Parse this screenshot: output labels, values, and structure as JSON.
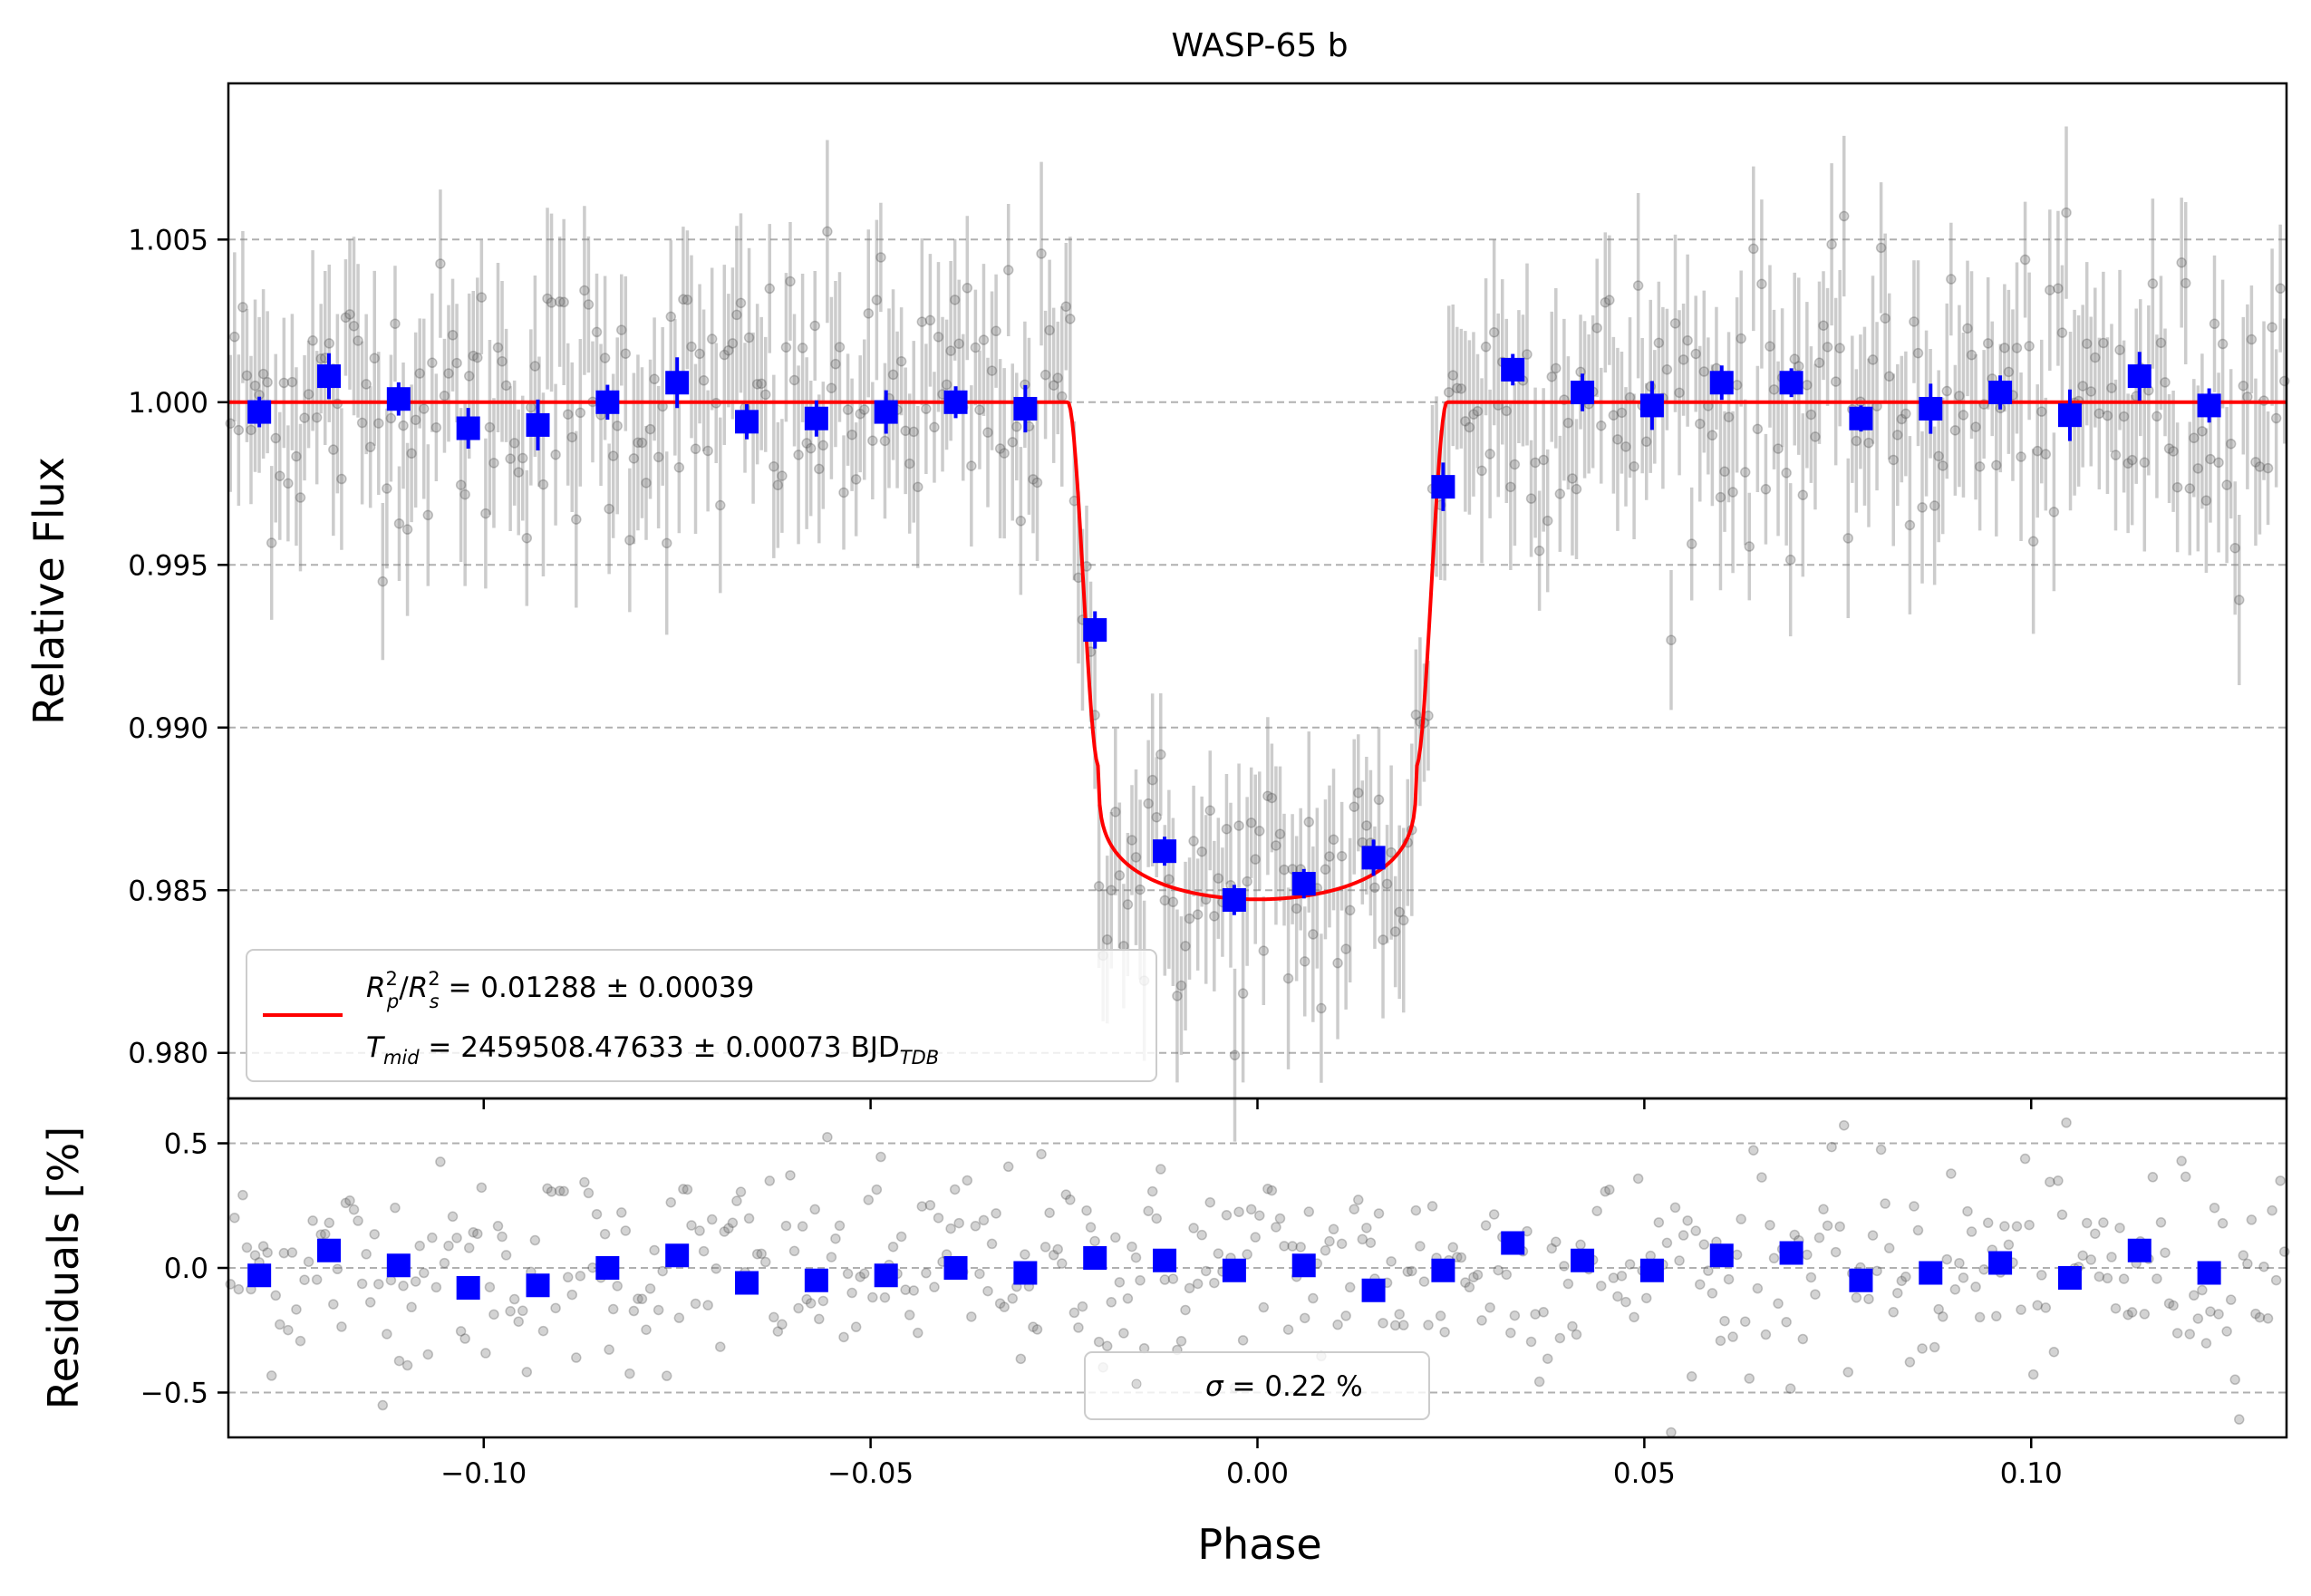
{
  "chart_data": [
    {
      "type": "scatter",
      "panel": "main",
      "title": "WASP-65 b",
      "xlabel": "",
      "ylabel": "Relative Flux",
      "xlim": [
        -0.133,
        0.133
      ],
      "ylim": [
        0.9786,
        1.0098
      ],
      "xticks": [
        -0.1,
        -0.05,
        0.0,
        0.05,
        0.1
      ],
      "yticks": [
        0.98,
        0.985,
        0.99,
        0.995,
        1.0,
        1.005
      ],
      "ytick_labels": [
        "0.980",
        "0.985",
        "0.990",
        "0.995",
        "1.000",
        "1.005"
      ],
      "grid": "y-dashed",
      "model": {
        "name": "transit model",
        "color": "#ff0000",
        "baseline": 1.0,
        "depth": 0.01528,
        "t1": 0.0245,
        "t2": 0.0205
      },
      "binned": {
        "name": "binned data",
        "color": "#0000ff",
        "x": [
          -0.129,
          -0.12,
          -0.111,
          -0.102,
          -0.093,
          -0.084,
          -0.075,
          -0.066,
          -0.057,
          -0.048,
          -0.039,
          -0.03,
          -0.021,
          -0.012,
          -0.003,
          0.006,
          0.015,
          0.024,
          0.033,
          0.042,
          0.051,
          0.06,
          0.069,
          0.078,
          0.087,
          0.096,
          0.105,
          0.114,
          0.123
        ],
        "y": [
          0.9997,
          1.0008,
          1.0001,
          0.9992,
          0.9993,
          1.0,
          1.0006,
          0.9994,
          0.9995,
          0.9997,
          1.0,
          0.9998,
          0.993,
          0.9862,
          0.9847,
          0.9852,
          0.986,
          0.9974,
          1.001,
          1.0003,
          0.9999,
          1.0006,
          1.0006,
          0.9995,
          0.9998,
          1.0003,
          0.9996,
          1.0008,
          0.9999
        ],
        "err": 0.0005
      },
      "raw": {
        "name": "raw data",
        "color": "#808080",
        "count": 500,
        "err": 0.0022
      },
      "legend": {
        "location": "lower-left",
        "entries": [
          {
            "label_main": "R",
            "label_p_sup": "2",
            "label_p_sub": "p",
            "label_s_sup": "2",
            "label_s_sub": "s",
            "label_value": " = 0.01288 ± 0.00039"
          },
          {
            "label_main": "T",
            "label_sub": "mid",
            "label_value": " = 2459508.47633 ± 0.00073 BJD",
            "label_unit_sub": "TDB"
          }
        ]
      }
    },
    {
      "type": "scatter",
      "panel": "residuals",
      "xlabel": "Phase",
      "ylabel": "Residuals [%]",
      "xlim": [
        -0.133,
        0.133
      ],
      "ylim": [
        -0.68,
        0.68
      ],
      "xticks": [
        -0.1,
        -0.05,
        0.0,
        0.05,
        0.1
      ],
      "xtick_labels": [
        "−0.10",
        "−0.05",
        "0.00",
        "0.05",
        "0.10"
      ],
      "yticks": [
        -0.5,
        0.0,
        0.5
      ],
      "ytick_labels": [
        "−0.5",
        "0.0",
        "0.5"
      ],
      "grid": "y-dashed",
      "binned": {
        "color": "#0000ff",
        "x": [
          -0.129,
          -0.12,
          -0.111,
          -0.102,
          -0.093,
          -0.084,
          -0.075,
          -0.066,
          -0.057,
          -0.048,
          -0.039,
          -0.03,
          -0.021,
          -0.012,
          -0.003,
          0.006,
          0.015,
          0.024,
          0.033,
          0.042,
          0.051,
          0.06,
          0.069,
          0.078,
          0.087,
          0.096,
          0.105,
          0.114,
          0.123
        ],
        "y": [
          -0.03,
          0.07,
          0.01,
          -0.08,
          -0.07,
          0.0,
          0.05,
          -0.06,
          -0.05,
          -0.03,
          0.0,
          -0.02,
          0.04,
          0.03,
          -0.01,
          0.01,
          -0.09,
          -0.01,
          0.1,
          0.03,
          -0.01,
          0.05,
          0.06,
          -0.05,
          -0.02,
          0.02,
          -0.04,
          0.07,
          -0.02
        ]
      },
      "raw": {
        "color": "#808080",
        "count": 500
      },
      "legend": {
        "location": "lower-center",
        "entries": [
          {
            "label_sigma": "σ",
            "label_value": " = 0.22 %"
          }
        ]
      }
    }
  ]
}
